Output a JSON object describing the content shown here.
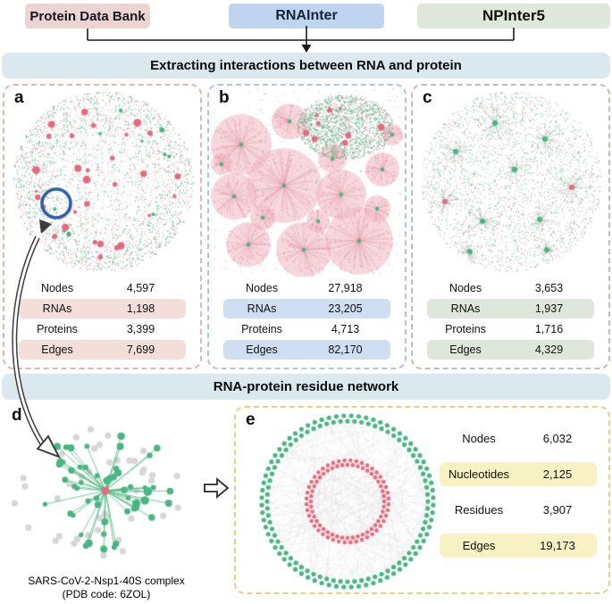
{
  "sources": {
    "pdb": {
      "label": "Protein Data Bank"
    },
    "rnainter": {
      "label": "RNAInter"
    },
    "npinter": {
      "label": "NPInter5"
    }
  },
  "banners": {
    "extract": "Extracting interactions between RNA and protein",
    "residue": "RNA-protein residue network"
  },
  "panels": {
    "a": {
      "letter": "a",
      "rows": [
        {
          "label": "Nodes",
          "value": "4,597"
        },
        {
          "label": "RNAs",
          "value": "1,198"
        },
        {
          "label": "Proteins",
          "value": "3,399"
        },
        {
          "label": "Edges",
          "value": "7,699"
        }
      ]
    },
    "b": {
      "letter": "b",
      "rows": [
        {
          "label": "Nodes",
          "value": "27,918"
        },
        {
          "label": "RNAs",
          "value": "23,205"
        },
        {
          "label": "Proteins",
          "value": "4,713"
        },
        {
          "label": "Edges",
          "value": "82,170"
        }
      ]
    },
    "c": {
      "letter": "c",
      "rows": [
        {
          "label": "Nodes",
          "value": "3,653"
        },
        {
          "label": "RNAs",
          "value": "1,937"
        },
        {
          "label": "Proteins",
          "value": "1,716"
        },
        {
          "label": "Edges",
          "value": "4,329"
        }
      ]
    },
    "d": {
      "letter": "d",
      "caption1": "SARS-CoV-2-Nsp1-40S complex",
      "caption2": "(PDB code: 6ZOL)"
    },
    "e": {
      "letter": "e",
      "rows": [
        {
          "label": "Nodes",
          "value": "6,032"
        },
        {
          "label": "Nucleotides",
          "value": "2,125"
        },
        {
          "label": "Residues",
          "value": "3,907"
        },
        {
          "label": "Edges",
          "value": "19,173"
        }
      ]
    }
  },
  "colors": {
    "green_node": "#49b584",
    "pink_node": "#ef96a4",
    "pink_hub": "#e8697f",
    "gray_node": "#d6d6d6",
    "dark_dot": "#7fa18c",
    "magnifier_blue": "#2b5ca6",
    "green_edge": "rgba(85,185,130,0.8)",
    "blob_fill": "rgba(238,182,193,0.55)",
    "blob_spoke": "rgba(214,122,144,0.3)",
    "burst_line": "rgba(128,148,133,0.35)",
    "chord_line": "rgba(110,110,110,0.08)",
    "banner_bg": "#d9e9ee",
    "border_a": "#e3b6ae",
    "border_b": "#a9c6e8",
    "border_c": "#b6c3b4",
    "border_e": "#e5d27f",
    "highlight_a": "#f3ded9",
    "highlight_b": "#cfdef3",
    "highlight_c": "#dfe7dc",
    "highlight_e": "#f7f1c4",
    "src_pdb_bg": "#ecd5d1",
    "src_rnainter_bg": "#bfd4ef",
    "src_npinter_bg": "#e0e7dd"
  }
}
